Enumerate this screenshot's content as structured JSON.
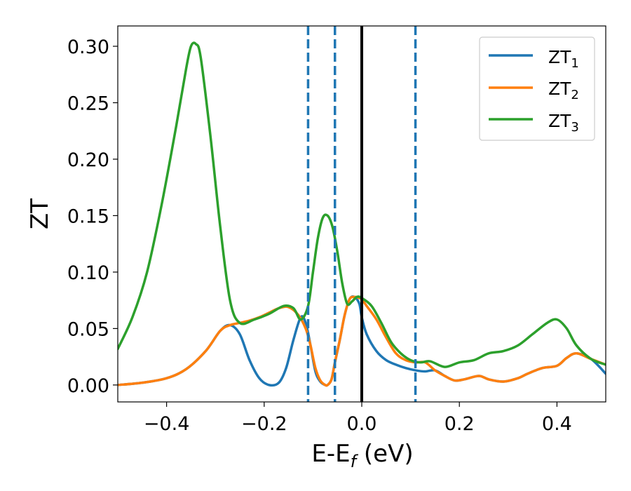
{
  "chart_data": {
    "type": "line",
    "xlabel": "E-E",
    "xlabel_sub": "f",
    "xlabel_unit": " (eV)",
    "ylabel": "ZT",
    "xlim": [
      -0.5,
      0.5
    ],
    "ylim": [
      -0.015,
      0.318
    ],
    "xticks": [
      -0.4,
      -0.2,
      0.0,
      0.2,
      0.4
    ],
    "xtick_labels": [
      "−0.4",
      "−0.2",
      "0.0",
      "0.2",
      "0.4"
    ],
    "yticks": [
      0.0,
      0.05,
      0.1,
      0.15,
      0.2,
      0.25,
      0.3
    ],
    "ytick_labels": [
      "0.00",
      "0.05",
      "0.10",
      "0.15",
      "0.20",
      "0.25",
      "0.30"
    ],
    "grid": false,
    "legend_position": "top-right",
    "vlines": [
      {
        "x": -0.11,
        "style": "dashed",
        "color": "#1f77b4"
      },
      {
        "x": -0.055,
        "style": "dashed",
        "color": "#1f77b4"
      },
      {
        "x": 0.0,
        "style": "solid",
        "color": "#000000"
      },
      {
        "x": 0.11,
        "style": "dashed",
        "color": "#1f77b4"
      }
    ],
    "series": [
      {
        "name": "ZT",
        "name_sub": "1",
        "color": "#1f77b4",
        "x": [
          -0.5,
          -0.45,
          -0.4,
          -0.36,
          -0.32,
          -0.29,
          -0.27,
          -0.25,
          -0.23,
          -0.21,
          -0.19,
          -0.17,
          -0.155,
          -0.14,
          -0.125,
          -0.115,
          -0.105,
          -0.095,
          -0.085,
          -0.075,
          -0.07,
          -0.062,
          -0.055,
          -0.045,
          -0.035,
          -0.025,
          -0.015,
          -0.005,
          0.0,
          0.01,
          0.03,
          0.05,
          0.07,
          0.09,
          0.11,
          0.13,
          0.15,
          0.17,
          0.19,
          0.21,
          0.24,
          0.26,
          0.29,
          0.32,
          0.34,
          0.37,
          0.4,
          0.42,
          0.44,
          0.47,
          0.5
        ],
        "y": [
          0.0,
          0.002,
          0.006,
          0.014,
          0.03,
          0.048,
          0.053,
          0.045,
          0.022,
          0.006,
          0.0,
          0.002,
          0.015,
          0.04,
          0.06,
          0.055,
          0.035,
          0.012,
          0.003,
          0.0,
          0.0,
          0.005,
          0.02,
          0.04,
          0.062,
          0.076,
          0.078,
          0.072,
          0.06,
          0.045,
          0.03,
          0.022,
          0.018,
          0.015,
          0.013,
          0.012,
          0.013,
          0.008,
          0.004,
          0.005,
          0.008,
          0.005,
          0.003,
          0.006,
          0.01,
          0.015,
          0.017,
          0.024,
          0.028,
          0.023,
          0.01
        ]
      },
      {
        "name": "ZT",
        "name_sub": "2",
        "color": "#ff7f0e",
        "x": [
          -0.5,
          -0.45,
          -0.4,
          -0.36,
          -0.32,
          -0.29,
          -0.27,
          -0.25,
          -0.23,
          -0.21,
          -0.19,
          -0.17,
          -0.15,
          -0.13,
          -0.115,
          -0.105,
          -0.095,
          -0.085,
          -0.075,
          -0.07,
          -0.062,
          -0.055,
          -0.045,
          -0.035,
          -0.025,
          -0.015,
          -0.005,
          0.0,
          0.01,
          0.03,
          0.05,
          0.07,
          0.09,
          0.11,
          0.13,
          0.15,
          0.17,
          0.19,
          0.21,
          0.24,
          0.26,
          0.29,
          0.32,
          0.34,
          0.37,
          0.4,
          0.42,
          0.44,
          0.47,
          0.5
        ],
        "y": [
          0.0,
          0.002,
          0.006,
          0.014,
          0.03,
          0.048,
          0.053,
          0.055,
          0.057,
          0.06,
          0.064,
          0.068,
          0.069,
          0.062,
          0.05,
          0.035,
          0.015,
          0.004,
          0.0,
          0.0,
          0.005,
          0.02,
          0.04,
          0.062,
          0.076,
          0.078,
          0.077,
          0.076,
          0.07,
          0.058,
          0.042,
          0.028,
          0.022,
          0.02,
          0.02,
          0.013,
          0.008,
          0.004,
          0.005,
          0.008,
          0.005,
          0.003,
          0.006,
          0.01,
          0.015,
          0.017,
          0.024,
          0.028,
          0.023,
          0.018
        ]
      },
      {
        "name": "ZT",
        "name_sub": "3",
        "color": "#2ca02c",
        "x": [
          -0.5,
          -0.47,
          -0.44,
          -0.41,
          -0.38,
          -0.36,
          -0.35,
          -0.34,
          -0.33,
          -0.31,
          -0.29,
          -0.27,
          -0.25,
          -0.22,
          -0.19,
          -0.16,
          -0.14,
          -0.125,
          -0.11,
          -0.1,
          -0.09,
          -0.08,
          -0.07,
          -0.06,
          -0.05,
          -0.04,
          -0.03,
          -0.02,
          -0.01,
          0.0,
          0.02,
          0.04,
          0.06,
          0.08,
          0.1,
          0.12,
          0.14,
          0.17,
          0.2,
          0.23,
          0.26,
          0.29,
          0.32,
          0.35,
          0.38,
          0.4,
          0.42,
          0.44,
          0.47,
          0.5
        ],
        "y": [
          0.032,
          0.06,
          0.1,
          0.16,
          0.23,
          0.28,
          0.3,
          0.302,
          0.29,
          0.22,
          0.14,
          0.075,
          0.055,
          0.058,
          0.063,
          0.07,
          0.068,
          0.058,
          0.07,
          0.1,
          0.13,
          0.148,
          0.15,
          0.14,
          0.118,
          0.09,
          0.072,
          0.074,
          0.078,
          0.077,
          0.07,
          0.055,
          0.038,
          0.028,
          0.022,
          0.02,
          0.021,
          0.016,
          0.02,
          0.022,
          0.028,
          0.03,
          0.035,
          0.045,
          0.055,
          0.058,
          0.05,
          0.035,
          0.023,
          0.018
        ]
      }
    ]
  }
}
